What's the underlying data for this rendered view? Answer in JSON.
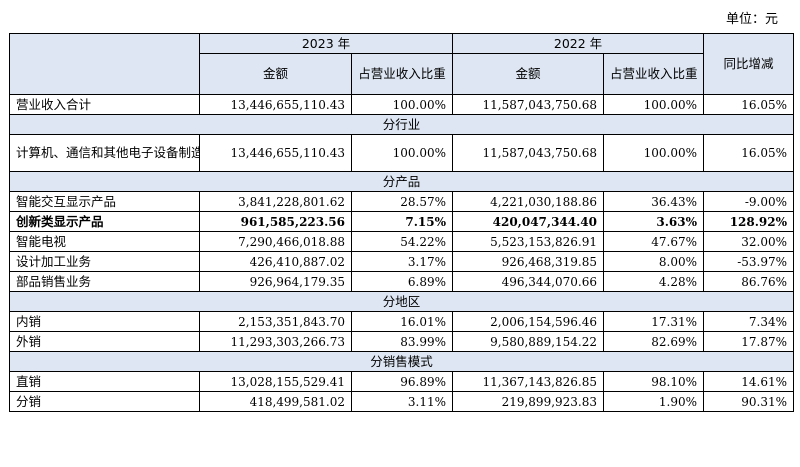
{
  "unit_label": "单位：元",
  "header": {
    "year_2023": "2023 年",
    "year_2022": "2022 年",
    "amount": "金额",
    "ratio": "占营业收入比重",
    "yoy": "同比增减"
  },
  "total": {
    "name": "营业收入合计",
    "a2023": "13,446,655,110.43",
    "r2023": "100.00%",
    "a2022": "11,587,043,750.68",
    "r2022": "100.00%",
    "yoy": "16.05%"
  },
  "sections": {
    "industry": "分行业",
    "product": "分产品",
    "region": "分地区",
    "sales_mode": "分销售模式"
  },
  "industry_rows": [
    {
      "name": "计算机、通信和其他电子设备制造业",
      "a2023": "13,446,655,110.43",
      "r2023": "100.00%",
      "a2022": "11,587,043,750.68",
      "r2022": "100.00%",
      "yoy": "16.05%"
    }
  ],
  "product_rows": [
    {
      "name": "智能交互显示产品",
      "a2023": "3,841,228,801.62",
      "r2023": "28.57%",
      "a2022": "4,221,030,188.86",
      "r2022": "36.43%",
      "yoy": "-9.00%"
    },
    {
      "name": "创新类显示产品",
      "a2023": "961,585,223.56",
      "r2023": "7.15%",
      "a2022": "420,047,344.40",
      "r2022": "3.63%",
      "yoy": "128.92%"
    },
    {
      "name": "智能电视",
      "a2023": "7,290,466,018.88",
      "r2023": "54.22%",
      "a2022": "5,523,153,826.91",
      "r2022": "47.67%",
      "yoy": "32.00%"
    },
    {
      "name": "设计加工业务",
      "a2023": "426,410,887.02",
      "r2023": "3.17%",
      "a2022": "926,468,319.85",
      "r2022": "8.00%",
      "yoy": "-53.97%"
    },
    {
      "name": "部品销售业务",
      "a2023": "926,964,179.35",
      "r2023": "6.89%",
      "a2022": "496,344,070.66",
      "r2022": "4.28%",
      "yoy": "86.76%"
    }
  ],
  "region_rows": [
    {
      "name": "内销",
      "a2023": "2,153,351,843.70",
      "r2023": "16.01%",
      "a2022": "2,006,154,596.46",
      "r2022": "17.31%",
      "yoy": "7.34%"
    },
    {
      "name": "外销",
      "a2023": "11,293,303,266.73",
      "r2023": "83.99%",
      "a2022": "9,580,889,154.22",
      "r2022": "82.69%",
      "yoy": "17.87%"
    }
  ],
  "sales_rows": [
    {
      "name": "直销",
      "a2023": "13,028,155,529.41",
      "r2023": "96.89%",
      "a2022": "11,367,143,826.85",
      "r2022": "98.10%",
      "yoy": "14.61%"
    },
    {
      "name": "分销",
      "a2023": "418,499,581.02",
      "r2023": "3.11%",
      "a2022": "219,899,923.83",
      "r2022": "1.90%",
      "yoy": "90.31%"
    }
  ]
}
